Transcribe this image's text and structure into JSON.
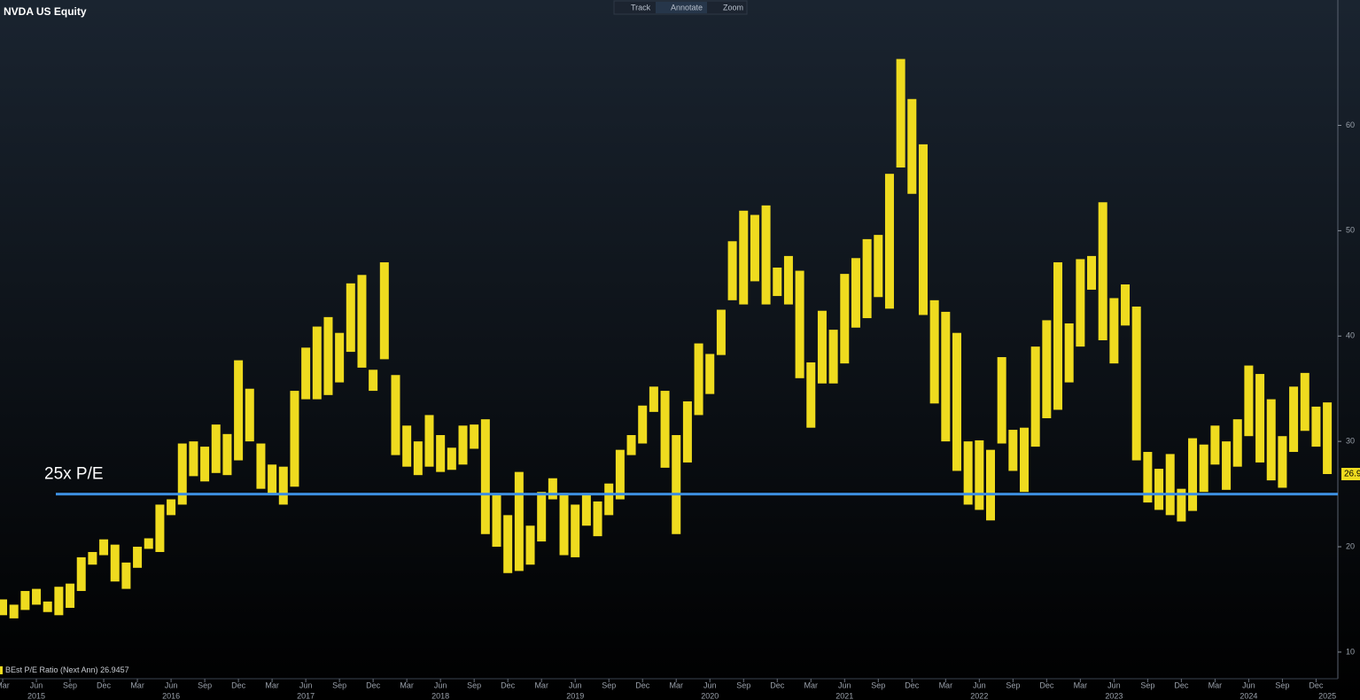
{
  "toolbar": [
    "Track",
    "Annotate",
    "Zoom"
  ],
  "chart_data": {
    "type": "range_bar",
    "title": "NVDA US Equity",
    "categories": [
      "Mar",
      null,
      null,
      "Jun",
      null,
      null,
      "Sep",
      null,
      null,
      "Dec",
      null,
      null,
      "Mar",
      null,
      null,
      "Jun",
      null,
      null,
      "Sep",
      null,
      null,
      "Dec",
      null,
      null,
      "Mar",
      null,
      null,
      "Jun",
      null,
      null,
      "Sep",
      null,
      null,
      "Dec",
      null,
      null,
      "Mar",
      null,
      null,
      "Jun",
      null,
      null,
      "Sep",
      null,
      null,
      "Dec",
      null,
      null,
      "Mar",
      null,
      null,
      "Jun",
      null,
      null,
      "Sep",
      null,
      null,
      "Dec",
      null,
      null,
      "Mar",
      null,
      null,
      "Jun",
      null,
      null,
      "Sep",
      null,
      null,
      "Dec",
      null,
      null,
      "Mar",
      null,
      null,
      "Jun",
      null,
      null,
      "Sep",
      null,
      null,
      "Dec",
      null,
      null,
      "Mar",
      null,
      null,
      "Jun",
      null,
      null,
      "Sep",
      null,
      null,
      "Dec",
      null,
      null,
      "Mar",
      null,
      null,
      "Jun",
      null,
      null,
      "Sep",
      null,
      null,
      "Dec",
      null,
      null,
      "Mar",
      null,
      null,
      "Jun",
      null,
      null,
      "Sep",
      null,
      null,
      "Dec",
      null
    ],
    "years": [
      null,
      null,
      null,
      "2015",
      null,
      null,
      null,
      null,
      null,
      null,
      null,
      null,
      null,
      null,
      null,
      "2016",
      null,
      null,
      null,
      null,
      null,
      null,
      null,
      null,
      null,
      null,
      null,
      "2017",
      null,
      null,
      null,
      null,
      null,
      null,
      null,
      null,
      null,
      null,
      null,
      "2018",
      null,
      null,
      null,
      null,
      null,
      null,
      null,
      null,
      null,
      null,
      null,
      "2019",
      null,
      null,
      null,
      null,
      null,
      null,
      null,
      null,
      null,
      null,
      null,
      "2020",
      null,
      null,
      null,
      null,
      null,
      null,
      null,
      null,
      null,
      null,
      null,
      "2021",
      null,
      null,
      null,
      null,
      null,
      null,
      null,
      null,
      null,
      null,
      null,
      "2022",
      null,
      null,
      null,
      null,
      null,
      null,
      null,
      null,
      null,
      null,
      null,
      "2023",
      null,
      null,
      null,
      null,
      null,
      null,
      null,
      null,
      null,
      null,
      null,
      "2024",
      null,
      null,
      null,
      null,
      null,
      null,
      "2025"
    ],
    "series": [
      {
        "name": "BEst P/E Ratio (Next Ann)",
        "color": "#efdb1f",
        "low": [
          13.5,
          13.2,
          14.0,
          14.5,
          13.8,
          13.5,
          14.2,
          15.8,
          18.3,
          19.2,
          16.7,
          16.0,
          18.0,
          19.8,
          19.5,
          23.0,
          24.0,
          26.7,
          26.2,
          27.0,
          26.8,
          28.2,
          30.0,
          25.5,
          25.0,
          24.0,
          25.7,
          34.0,
          34.0,
          34.4,
          35.6,
          38.5,
          37.0,
          34.8,
          37.8,
          28.7,
          27.6,
          26.8,
          27.6,
          27.1,
          27.3,
          27.8,
          29.3,
          21.2,
          20.0,
          17.5,
          17.7,
          18.3,
          20.5,
          24.5,
          19.2,
          19.0,
          22.0,
          21.0,
          23.0,
          24.5,
          28.7,
          29.8,
          32.8,
          27.5,
          21.2,
          28.0,
          32.5,
          34.5,
          38.2,
          43.4,
          43.0,
          45.2,
          43.0,
          43.8,
          43.0,
          36.0,
          31.3,
          35.5,
          35.5,
          37.4,
          40.8,
          41.7,
          43.7,
          42.6,
          56.0,
          53.5,
          42.0,
          33.6,
          30.0,
          27.2,
          24.0,
          23.5,
          22.5,
          29.8,
          27.2,
          25.2,
          29.5,
          32.2,
          33.0,
          35.6,
          39.0,
          44.4,
          39.6,
          37.4,
          41.0,
          28.2,
          24.2,
          23.5,
          23.0,
          22.4,
          23.4,
          25.2,
          27.8,
          25.4,
          27.6,
          30.5,
          28.0,
          26.3,
          25.6,
          29.0,
          31.0,
          29.5,
          26.9
        ],
        "high": [
          15.0,
          14.5,
          15.8,
          16.0,
          14.8,
          16.2,
          16.5,
          19.0,
          19.5,
          20.7,
          20.2,
          18.5,
          20.0,
          20.8,
          24.0,
          24.5,
          29.8,
          30.0,
          29.5,
          31.6,
          30.7,
          37.7,
          35.0,
          29.8,
          27.8,
          27.6,
          34.8,
          38.9,
          40.9,
          41.8,
          40.3,
          45.0,
          45.8,
          36.8,
          47.0,
          36.3,
          31.5,
          30.0,
          32.5,
          30.6,
          29.4,
          31.5,
          31.6,
          32.1,
          25.0,
          23.0,
          27.1,
          22.0,
          25.2,
          26.5,
          25.1,
          24.0,
          25.0,
          24.3,
          26.0,
          29.2,
          30.6,
          33.4,
          35.2,
          34.8,
          30.6,
          33.8,
          39.3,
          38.3,
          42.5,
          49.0,
          51.9,
          51.5,
          52.4,
          46.5,
          47.6,
          46.2,
          37.5,
          42.4,
          40.6,
          45.9,
          47.4,
          49.2,
          49.6,
          55.4,
          66.3,
          62.5,
          58.2,
          43.4,
          42.3,
          40.3,
          30.0,
          30.1,
          29.2,
          38.0,
          31.1,
          31.3,
          39.0,
          41.5,
          47.0,
          41.2,
          47.3,
          47.6,
          52.7,
          43.6,
          44.9,
          42.8,
          29.0,
          27.4,
          28.8,
          25.5,
          30.3,
          29.7,
          31.5,
          30.0,
          32.1,
          37.2,
          36.4,
          34.0,
          30.5,
          35.2,
          36.5,
          33.3,
          33.7
        ]
      }
    ],
    "last_value": 26.9457,
    "current_value": 26.9,
    "reference_line": {
      "value": 25,
      "label": "25x P/E",
      "color": "#3d8fe0"
    },
    "ylim": [
      7.47,
      71.9
    ],
    "yticks": [
      10,
      20,
      30,
      40,
      50,
      60
    ],
    "axis_side": "right"
  }
}
